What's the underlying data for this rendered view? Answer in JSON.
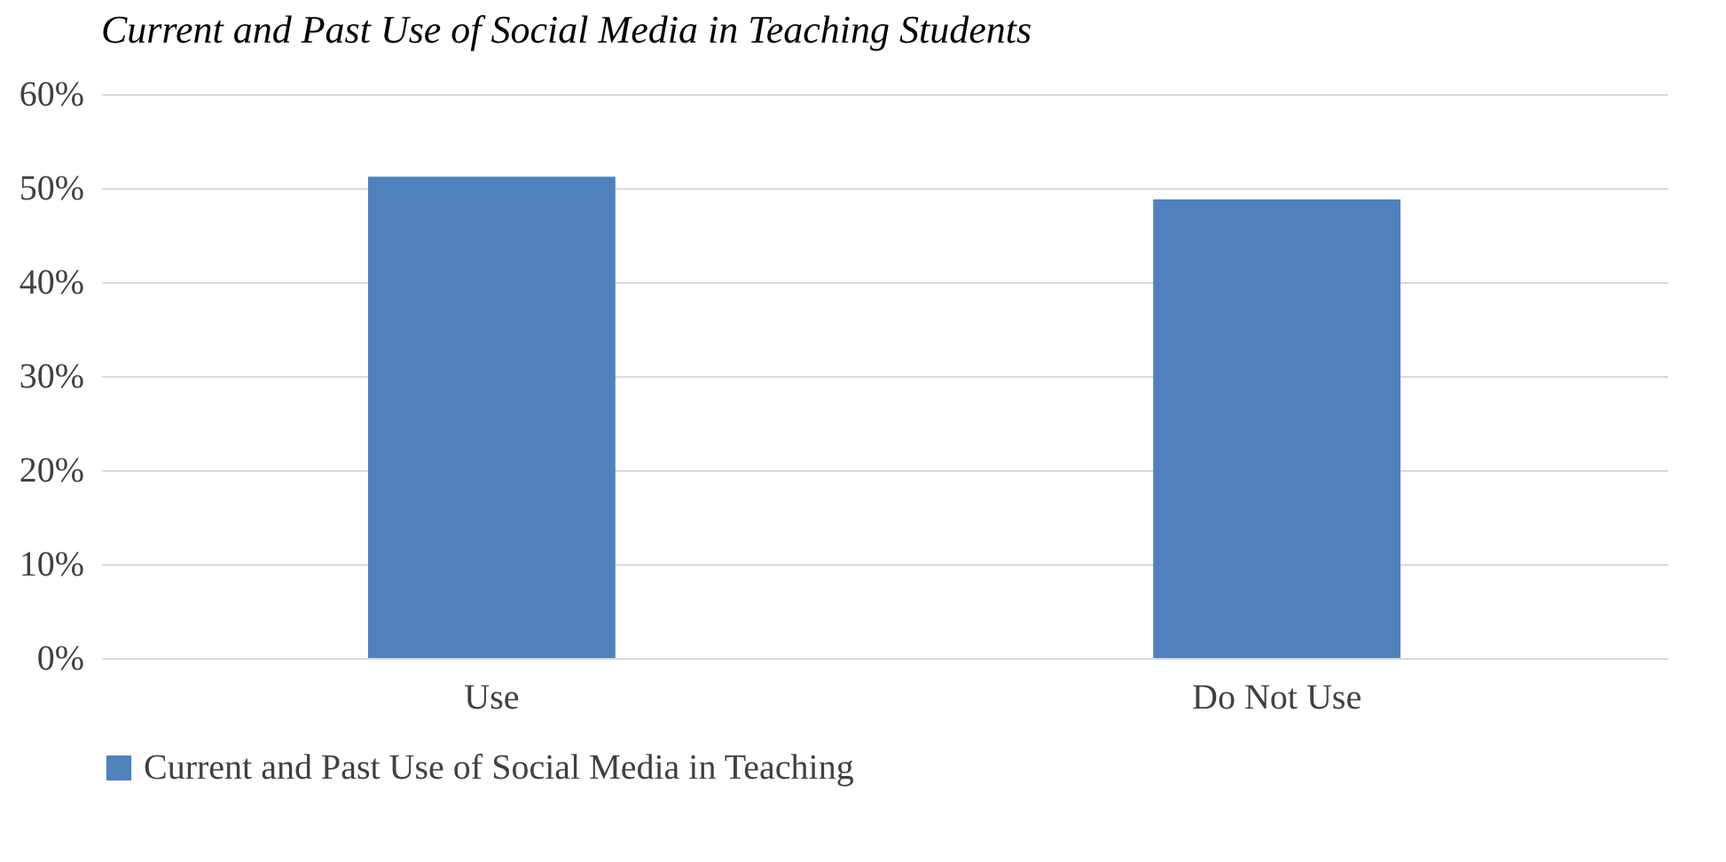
{
  "chart_data": {
    "type": "bar",
    "title": "Current and Past Use of Social Media in Teaching Students",
    "categories": [
      "Use",
      "Do Not Use"
    ],
    "series": [
      {
        "name": "Current and Past Use of Social Media in Teaching",
        "color": "#4f81bd",
        "values": [
          51.2,
          48.8
        ]
      }
    ],
    "ylim": [
      0,
      60
    ],
    "yticks": [
      {
        "value": 0,
        "label": "0%"
      },
      {
        "value": 10,
        "label": "10%"
      },
      {
        "value": 20,
        "label": "20%"
      },
      {
        "value": 30,
        "label": "30%"
      },
      {
        "value": 40,
        "label": "40%"
      },
      {
        "value": 50,
        "label": "50%"
      },
      {
        "value": 60,
        "label": "60%"
      }
    ],
    "grid": "y",
    "legend": "bottom"
  }
}
